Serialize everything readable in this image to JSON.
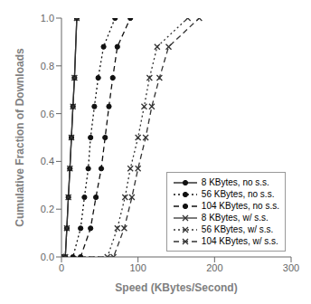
{
  "chart_data": {
    "type": "line",
    "title": "",
    "xlabel": "Speed (KBytes/Second)",
    "ylabel": "Cumulative Fraction of Downloads",
    "xlim": [
      0,
      300
    ],
    "ylim": [
      0.0,
      1.0
    ],
    "xticks": [
      0,
      100,
      200,
      300
    ],
    "yticks": [
      {
        "value": 0.0,
        "label": "0.0"
      },
      0.2,
      0.4,
      0.6,
      0.8,
      {
        "value": 1.0,
        "label": "1.0"
      }
    ],
    "grid": false,
    "legend": "lower right",
    "series": [
      {
        "name": "8 KBytes, no s.s.",
        "color": "#111111",
        "line_style": "solid",
        "marker": "circle",
        "x": [
          0,
          5,
          7,
          9,
          11,
          13,
          15,
          17,
          20
        ],
        "values": [
          0.0,
          0.0,
          0.12,
          0.25,
          0.37,
          0.5,
          0.63,
          0.75,
          1.0
        ]
      },
      {
        "name": "56 KBytes, no s.s.",
        "color": "#111111",
        "line_style": "dotted",
        "marker": "circle",
        "x": [
          0,
          15,
          25,
          30,
          35,
          38,
          43,
          48,
          55,
          70
        ],
        "values": [
          0.0,
          0.0,
          0.12,
          0.25,
          0.37,
          0.5,
          0.63,
          0.75,
          0.88,
          1.0
        ]
      },
      {
        "name": "104 KBytes, no s.s.",
        "color": "#111111",
        "line_style": "dashed",
        "marker": "circle",
        "x": [
          0,
          25,
          38,
          45,
          52,
          57,
          62,
          67,
          73,
          90
        ],
        "values": [
          0.0,
          0.0,
          0.12,
          0.25,
          0.37,
          0.5,
          0.63,
          0.75,
          0.88,
          1.0
        ]
      },
      {
        "name": "8 KBytes, w/ s.s.",
        "color": "#333333",
        "line_style": "solid",
        "marker": "x",
        "x": [
          0,
          5,
          7,
          9,
          11,
          13,
          15,
          17,
          20
        ],
        "values": [
          0.0,
          0.0,
          0.12,
          0.25,
          0.37,
          0.5,
          0.63,
          0.75,
          1.0
        ]
      },
      {
        "name": "56 KBytes, w/ s.s.",
        "color": "#333333",
        "line_style": "dotted",
        "marker": "x",
        "x": [
          0,
          60,
          73,
          83,
          90,
          100,
          108,
          115,
          125,
          165
        ],
        "values": [
          0.0,
          0.0,
          0.12,
          0.25,
          0.37,
          0.5,
          0.63,
          0.75,
          0.88,
          1.0
        ]
      },
      {
        "name": "104 KBytes, w/ s.s.",
        "color": "#333333",
        "line_style": "dashed",
        "marker": "x",
        "x": [
          0,
          68,
          82,
          92,
          100,
          110,
          118,
          128,
          140,
          180
        ],
        "values": [
          0.0,
          0.0,
          0.12,
          0.25,
          0.37,
          0.5,
          0.63,
          0.75,
          0.88,
          1.0
        ]
      }
    ]
  }
}
